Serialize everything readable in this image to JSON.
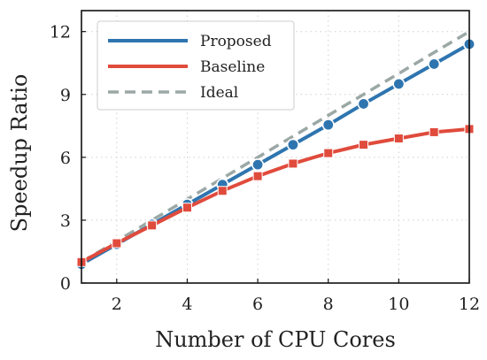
{
  "chart_data": {
    "type": "line",
    "title": "",
    "xlabel": "Number of CPU Cores",
    "ylabel": "Speedup Ratio",
    "xlim": [
      1,
      12
    ],
    "ylim": [
      0,
      13
    ],
    "xticks": [
      2,
      4,
      6,
      8,
      10,
      12
    ],
    "yticks": [
      0,
      3,
      6,
      9,
      12
    ],
    "grid": true,
    "legend_position": "top-left",
    "series": [
      {
        "name": "Proposed",
        "color": "#2e75b0",
        "marker": "circle",
        "x": [
          1,
          2,
          3,
          4,
          5,
          6,
          7,
          8,
          9,
          10,
          11,
          12
        ],
        "y": [
          0.9,
          1.85,
          2.8,
          3.75,
          4.7,
          5.65,
          6.6,
          7.55,
          8.55,
          9.5,
          10.45,
          11.4
        ]
      },
      {
        "name": "Baseline",
        "color": "#e04b3c",
        "marker": "square",
        "x": [
          1,
          2,
          3,
          4,
          5,
          6,
          7,
          8,
          9,
          10,
          11,
          12
        ],
        "y": [
          1.0,
          1.9,
          2.75,
          3.6,
          4.4,
          5.1,
          5.7,
          6.2,
          6.6,
          6.9,
          7.2,
          7.35
        ]
      },
      {
        "name": "Ideal",
        "color": "#9ba8a6",
        "dashed": true,
        "x": [
          1,
          12
        ],
        "y": [
          1,
          12
        ]
      }
    ]
  }
}
